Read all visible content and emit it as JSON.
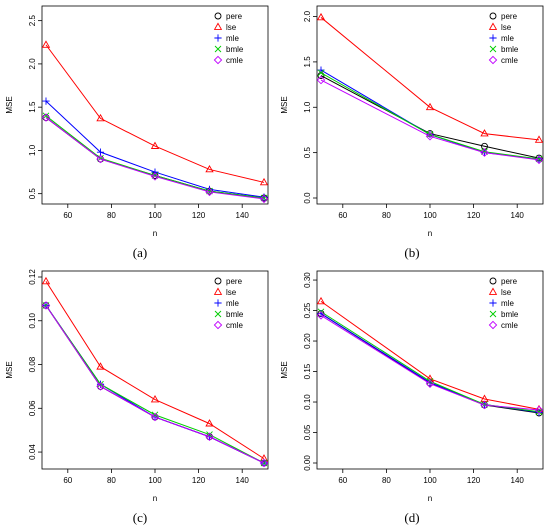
{
  "panel_labels": [
    "(a)",
    "(b)",
    "(c)",
    "(d)"
  ],
  "series_colors": {
    "pere": "#000000",
    "lse": "#ff0000",
    "mle": "#0000ff",
    "bmle": "#00cd00",
    "cmle": "#c000ff"
  },
  "chart_data": [
    {
      "type": "line",
      "title": "",
      "xlabel": "n",
      "ylabel": "MSE",
      "x": [
        50,
        75,
        100,
        125,
        150
      ],
      "xlim": [
        50,
        150
      ],
      "ylim": [
        0.45,
        2.6
      ],
      "xticks": [
        "60",
        "80",
        "100",
        "120",
        "140"
      ],
      "yticks": [
        "0.5",
        "1.0",
        "1.5",
        "2.0",
        "2.5"
      ],
      "legend": "top-right",
      "series": [
        {
          "name": "pere",
          "marker": "circle",
          "values": [
            1.38,
            0.9,
            0.71,
            0.53,
            0.45
          ]
        },
        {
          "name": "lse",
          "marker": "triangle",
          "values": [
            2.22,
            1.37,
            1.05,
            0.78,
            0.63
          ]
        },
        {
          "name": "mle",
          "marker": "plus",
          "values": [
            1.57,
            0.98,
            0.75,
            0.55,
            0.46
          ]
        },
        {
          "name": "bmle",
          "marker": "cross",
          "values": [
            1.4,
            0.91,
            0.71,
            0.53,
            0.45
          ]
        },
        {
          "name": "cmle",
          "marker": "diamond",
          "values": [
            1.38,
            0.9,
            0.7,
            0.52,
            0.44
          ]
        }
      ]
    },
    {
      "type": "line",
      "title": "",
      "xlabel": "n",
      "ylabel": "MSE",
      "x": [
        50,
        100,
        125,
        150
      ],
      "xlim": [
        50,
        150
      ],
      "ylim": [
        0,
        2.05
      ],
      "xticks": [
        "60",
        "80",
        "100",
        "120",
        "140"
      ],
      "yticks": [
        "0.0",
        "0.5",
        "1.0",
        "1.5",
        "2.0"
      ],
      "legend": "top-right",
      "series": [
        {
          "name": "pere",
          "marker": "circle",
          "values": [
            1.35,
            0.71,
            0.57,
            0.44
          ]
        },
        {
          "name": "lse",
          "marker": "triangle",
          "values": [
            1.99,
            1.0,
            0.71,
            0.64
          ]
        },
        {
          "name": "mle",
          "marker": "plus",
          "values": [
            1.41,
            0.7,
            0.5,
            0.43
          ]
        },
        {
          "name": "bmle",
          "marker": "cross",
          "values": [
            1.38,
            0.7,
            0.51,
            0.43
          ]
        },
        {
          "name": "cmle",
          "marker": "diamond",
          "values": [
            1.3,
            0.68,
            0.5,
            0.42
          ]
        }
      ]
    },
    {
      "type": "line",
      "title": "",
      "xlabel": "n",
      "ylabel": "MSE",
      "x": [
        50,
        75,
        100,
        125,
        150
      ],
      "xlim": [
        50,
        150
      ],
      "ylim": [
        0.035,
        0.12
      ],
      "xticks": [
        "60",
        "80",
        "100",
        "120",
        "140"
      ],
      "yticks": [
        "0.04",
        "0.06",
        "0.08",
        "0.10",
        "0.12"
      ],
      "legend": "top-right",
      "series": [
        {
          "name": "pere",
          "marker": "circle",
          "values": [
            0.107,
            0.07,
            0.056,
            0.047,
            0.035
          ]
        },
        {
          "name": "lse",
          "marker": "triangle",
          "values": [
            0.118,
            0.079,
            0.064,
            0.053,
            0.037
          ]
        },
        {
          "name": "mle",
          "marker": "plus",
          "values": [
            0.107,
            0.071,
            0.056,
            0.047,
            0.035
          ]
        },
        {
          "name": "bmle",
          "marker": "cross",
          "values": [
            0.107,
            0.071,
            0.057,
            0.048,
            0.035
          ]
        },
        {
          "name": "cmle",
          "marker": "diamond",
          "values": [
            0.107,
            0.07,
            0.056,
            0.047,
            0.035
          ]
        }
      ]
    },
    {
      "type": "line",
      "title": "",
      "xlabel": "n",
      "ylabel": "MSE",
      "x": [
        50,
        100,
        125,
        150
      ],
      "xlim": [
        50,
        150
      ],
      "ylim": [
        0,
        0.305
      ],
      "xticks": [
        "60",
        "80",
        "100",
        "120",
        "140"
      ],
      "yticks": [
        "0.00",
        "0.05",
        "0.10",
        "0.15",
        "0.20",
        "0.25",
        "0.30"
      ],
      "legend": "top-right",
      "series": [
        {
          "name": "pere",
          "marker": "circle",
          "values": [
            0.245,
            0.131,
            0.095,
            0.082
          ]
        },
        {
          "name": "lse",
          "marker": "triangle",
          "values": [
            0.265,
            0.138,
            0.105,
            0.088
          ]
        },
        {
          "name": "mle",
          "marker": "plus",
          "values": [
            0.245,
            0.132,
            0.096,
            0.083
          ]
        },
        {
          "name": "bmle",
          "marker": "cross",
          "values": [
            0.248,
            0.134,
            0.096,
            0.084
          ]
        },
        {
          "name": "cmle",
          "marker": "diamond",
          "values": [
            0.242,
            0.13,
            0.095,
            0.087
          ]
        }
      ]
    }
  ]
}
